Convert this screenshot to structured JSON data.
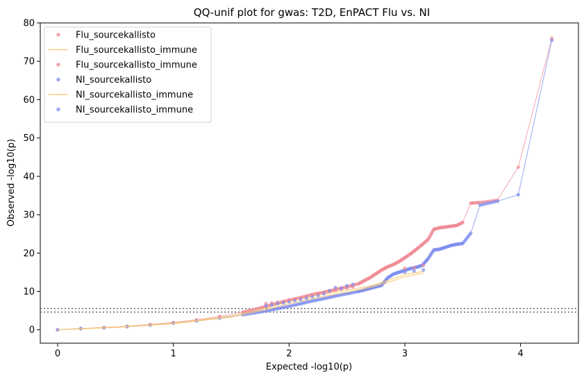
{
  "chart_data": {
    "type": "scatter",
    "title": "QQ-unif plot for gwas: T2D, EnPACT Flu vs. NI",
    "xlabel": "Expected -log10(p)",
    "ylabel": "Observed -log10(p)",
    "xlim": [
      -0.15,
      4.5
    ],
    "ylim": [
      -3.5,
      80
    ],
    "xticks": [
      0,
      1,
      2,
      3,
      4
    ],
    "yticks": [
      0,
      10,
      20,
      30,
      40,
      50,
      60,
      70,
      80
    ],
    "grid": false,
    "legend_position": "top-left",
    "reference_lines": [
      4.6,
      5.5
    ],
    "colors": {
      "flu_points": "#f08a94",
      "flu_line": "#f5a7b4",
      "immune_line": "#f7c46b",
      "ni_points": "#7e8df0",
      "ni_line": "#9aa8ee",
      "ref_line": "#666666"
    },
    "legend": [
      {
        "label": "Flu_sourcekallisto",
        "kind": "point",
        "color": "#f08a94"
      },
      {
        "label": "Flu_sourcekallisto_immune",
        "kind": "line",
        "color": "#f7c46b"
      },
      {
        "label": "Flu_sourcekallisto_immune",
        "kind": "point",
        "color": "#f08a94"
      },
      {
        "label": "NI_sourcekallisto",
        "kind": "point",
        "color": "#7e8df0"
      },
      {
        "label": "NI_sourcekallisto_immune",
        "kind": "line",
        "color": "#f7c46b"
      },
      {
        "label": "NI_sourcekallisto_immune",
        "kind": "point",
        "color": "#7e8df0"
      }
    ],
    "series": [
      {
        "name": "Flu_sourcekallisto",
        "kind": "line_points",
        "color": "#f08a94",
        "x": [
          0,
          0.2,
          0.4,
          0.6,
          0.8,
          1.0,
          1.2,
          1.4,
          1.6,
          1.7,
          1.8,
          1.9,
          2.0,
          2.1,
          2.2,
          2.3,
          2.4,
          2.5,
          2.6,
          2.65,
          2.7,
          2.75,
          2.8,
          2.85,
          2.9,
          2.95,
          3.0,
          3.05,
          3.1,
          3.15,
          3.2,
          3.25,
          3.3,
          3.35,
          3.4,
          3.45,
          3.5,
          3.57,
          3.65,
          3.8,
          3.98,
          4.27
        ],
        "y": [
          0,
          0.3,
          0.6,
          0.9,
          1.4,
          1.9,
          2.6,
          3.5,
          4.6,
          5.3,
          6.1,
          6.9,
          7.7,
          8.4,
          9.2,
          9.8,
          10.5,
          11.2,
          12.0,
          12.8,
          13.6,
          14.6,
          15.6,
          16.4,
          17.0,
          17.8,
          18.8,
          19.8,
          21.0,
          22.2,
          23.5,
          26.2,
          26.6,
          26.8,
          27.0,
          27.2,
          28.0,
          33.0,
          33.2,
          33.8,
          42.4,
          76.0
        ]
      },
      {
        "name": "NI_sourcekallisto",
        "kind": "line_points",
        "color": "#7e8df0",
        "x": [
          0,
          0.2,
          0.4,
          0.6,
          0.8,
          1.0,
          1.2,
          1.4,
          1.6,
          1.7,
          1.8,
          1.9,
          2.0,
          2.1,
          2.2,
          2.3,
          2.4,
          2.5,
          2.6,
          2.65,
          2.7,
          2.75,
          2.8,
          2.85,
          2.9,
          2.95,
          3.0,
          3.05,
          3.1,
          3.15,
          3.2,
          3.25,
          3.3,
          3.35,
          3.4,
          3.45,
          3.5,
          3.57,
          3.65,
          3.8,
          3.98,
          4.27
        ],
        "y": [
          0,
          0.3,
          0.5,
          0.8,
          1.2,
          1.7,
          2.3,
          3.0,
          3.9,
          4.4,
          4.9,
          5.5,
          6.1,
          6.8,
          7.5,
          8.1,
          8.8,
          9.4,
          10.0,
          10.4,
          10.8,
          11.2,
          11.6,
          13.5,
          14.5,
          15.0,
          15.5,
          16.0,
          16.3,
          16.8,
          18.5,
          20.8,
          21.0,
          21.5,
          22.0,
          22.3,
          22.5,
          25.2,
          32.5,
          33.5,
          35.2,
          75.5
        ]
      },
      {
        "name": "Flu_sourcekallisto_immune",
        "kind": "line",
        "color": "#f7c46b",
        "x": [
          0,
          0.5,
          1.0,
          1.5,
          1.8,
          2.0,
          2.3,
          2.5,
          2.7,
          2.85,
          3.0,
          3.16
        ],
        "y": [
          0,
          0.7,
          1.7,
          3.6,
          5.6,
          7.4,
          9.3,
          10.3,
          11.4,
          12.8,
          14.4,
          15.2
        ]
      },
      {
        "name": "NI_sourcekallisto_immune",
        "kind": "line",
        "color": "#f7c46b",
        "x": [
          0,
          0.5,
          1.0,
          1.5,
          1.8,
          2.0,
          2.3,
          2.5,
          2.7,
          2.85,
          3.0,
          3.16
        ],
        "y": [
          0,
          0.6,
          1.6,
          3.3,
          5.2,
          6.8,
          8.7,
          9.8,
          11.0,
          12.3,
          13.8,
          14.8
        ]
      },
      {
        "name": "Flu_sourcekallisto_immune",
        "kind": "points",
        "color": "#f08a94",
        "x": [
          1.8,
          1.85,
          1.9,
          1.95,
          2.0,
          2.05,
          2.1,
          2.15,
          2.2,
          2.25,
          2.3,
          2.35,
          2.4,
          2.45,
          2.5,
          2.55,
          3.0,
          3.08,
          3.16
        ],
        "y": [
          6.8,
          7.0,
          7.2,
          7.4,
          7.8,
          8.0,
          8.3,
          8.6,
          9.0,
          9.4,
          9.7,
          10.0,
          10.3,
          10.6,
          10.9,
          11.2,
          16.0,
          16.2,
          16.8
        ]
      },
      {
        "name": "NI_sourcekallisto_immune",
        "kind": "points",
        "color": "#7e8df0",
        "x": [
          1.8,
          1.85,
          1.9,
          1.95,
          2.0,
          2.05,
          2.1,
          2.15,
          2.2,
          2.25,
          2.3,
          2.35,
          2.4,
          2.45,
          2.5,
          2.55,
          3.0,
          3.08,
          3.16
        ],
        "y": [
          6.2,
          6.5,
          6.8,
          7.0,
          7.3,
          7.6,
          7.9,
          8.2,
          8.6,
          8.9,
          9.4,
          10.2,
          11.0,
          10.8,
          11.5,
          11.8,
          15.0,
          15.3,
          15.6
        ]
      }
    ]
  }
}
